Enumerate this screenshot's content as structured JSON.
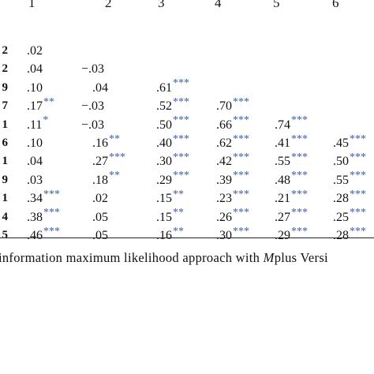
{
  "columns": [
    "1",
    "2",
    "3",
    "4",
    "5",
    "6"
  ],
  "rows": [
    {
      "label": "2",
      "cells": [
        {
          "v": ".02",
          "s": ""
        }
      ]
    },
    {
      "label": "2",
      "cells": [
        {
          "v": ".04",
          "s": ""
        },
        {
          "v": "−.03",
          "s": ""
        }
      ]
    },
    {
      "label": "9",
      "cells": [
        {
          "v": ".10",
          "s": ""
        },
        {
          "v": ".04",
          "s": ""
        },
        {
          "v": ".61",
          "s": "***"
        }
      ]
    },
    {
      "label": "7",
      "cells": [
        {
          "v": ".17",
          "s": "**"
        },
        {
          "v": "−.03",
          "s": ""
        },
        {
          "v": ".52",
          "s": "***"
        },
        {
          "v": ".70",
          "s": "***"
        }
      ]
    },
    {
      "label": "1",
      "cells": [
        {
          "v": ".11",
          "s": "*"
        },
        {
          "v": "−.03",
          "s": ""
        },
        {
          "v": ".50",
          "s": "***"
        },
        {
          "v": ".66",
          "s": "***"
        },
        {
          "v": ".74",
          "s": "***"
        }
      ]
    },
    {
      "label": "6",
      "cells": [
        {
          "v": ".10",
          "s": ""
        },
        {
          "v": ".16",
          "s": "**"
        },
        {
          "v": ".40",
          "s": "***"
        },
        {
          "v": ".62",
          "s": "***"
        },
        {
          "v": ".41",
          "s": "***"
        },
        {
          "v": ".45",
          "s": "***"
        }
      ]
    },
    {
      "label": "1",
      "cells": [
        {
          "v": ".04",
          "s": ""
        },
        {
          "v": ".27",
          "s": "***"
        },
        {
          "v": ".30",
          "s": "***"
        },
        {
          "v": ".42",
          "s": "***"
        },
        {
          "v": ".55",
          "s": "***"
        },
        {
          "v": ".50",
          "s": "***"
        }
      ]
    },
    {
      "label": "9",
      "cells": [
        {
          "v": ".03",
          "s": ""
        },
        {
          "v": ".18",
          "s": "**"
        },
        {
          "v": ".29",
          "s": "***"
        },
        {
          "v": ".39",
          "s": "***"
        },
        {
          "v": ".48",
          "s": "***"
        },
        {
          "v": ".55",
          "s": "***"
        }
      ]
    },
    {
      "label": "1",
      "cells": [
        {
          "v": ".34",
          "s": "***"
        },
        {
          "v": ".02",
          "s": ""
        },
        {
          "v": ".15",
          "s": "**"
        },
        {
          "v": ".23",
          "s": "***"
        },
        {
          "v": ".21",
          "s": "***"
        },
        {
          "v": ".28",
          "s": "***"
        }
      ]
    },
    {
      "label": "4",
      "cells": [
        {
          "v": ".38",
          "s": "***"
        },
        {
          "v": ".05",
          "s": ""
        },
        {
          "v": ".15",
          "s": "**"
        },
        {
          "v": ".26",
          "s": "***"
        },
        {
          "v": ".27",
          "s": "***"
        },
        {
          "v": ".25",
          "s": "***"
        }
      ]
    },
    {
      "label": "5",
      "cells": [
        {
          "v": ".46",
          "s": "***"
        },
        {
          "v": ".05",
          "s": ""
        },
        {
          "v": ".16",
          "s": "**"
        },
        {
          "v": ".30",
          "s": "***"
        },
        {
          "v": ".29",
          "s": "***"
        },
        {
          "v": ".28",
          "s": "***"
        }
      ]
    }
  ],
  "note": {
    "before": "information maximum likelihood approach with ",
    "italic": "M",
    "after": "plus Versi"
  }
}
